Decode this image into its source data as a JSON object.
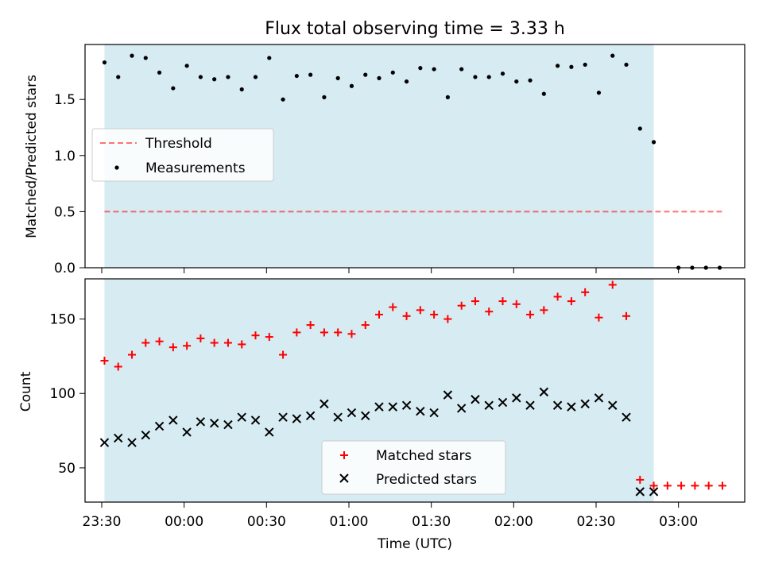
{
  "title": "Flux total observing time = 3.33 h",
  "colors": {
    "shade": "#add8e6",
    "threshold": "#ff0000",
    "measurements": "#000000",
    "matched": "#ff0000",
    "predicted": "#000000"
  },
  "chart_data": [
    {
      "type": "scatter",
      "panel": "top",
      "ylabel": "Matched/Predicted stars",
      "ylim": [
        0,
        1.99
      ],
      "yticks": [
        "0.0",
        "0.5",
        "1.0",
        "1.5"
      ],
      "grid": false,
      "legend": "center-left",
      "shaded_span": [
        "23:31",
        "02:51"
      ],
      "threshold": {
        "label": "Threshold",
        "value": 0.5,
        "x": [
          "23:31",
          "03:16"
        ],
        "style": "dashed"
      },
      "series": [
        {
          "name": "Measurements",
          "marker": "dot",
          "x": [
            "23:31",
            "23:36",
            "23:41",
            "23:46",
            "23:51",
            "23:56",
            "00:01",
            "00:06",
            "00:11",
            "00:16",
            "00:21",
            "00:26",
            "00:31",
            "00:36",
            "00:41",
            "00:46",
            "00:51",
            "00:56",
            "01:01",
            "01:06",
            "01:11",
            "01:16",
            "01:21",
            "01:26",
            "01:31",
            "01:36",
            "01:41",
            "01:46",
            "01:51",
            "01:56",
            "02:01",
            "02:06",
            "02:11",
            "02:16",
            "02:21",
            "02:26",
            "02:31",
            "02:36",
            "02:41",
            "02:46",
            "02:51",
            "03:00",
            "03:05",
            "03:10",
            "03:15"
          ],
          "values": [
            1.83,
            1.7,
            1.89,
            1.87,
            1.74,
            1.6,
            1.8,
            1.7,
            1.68,
            1.7,
            1.59,
            1.7,
            1.87,
            1.5,
            1.71,
            1.72,
            1.52,
            1.69,
            1.62,
            1.72,
            1.69,
            1.74,
            1.66,
            1.78,
            1.77,
            1.52,
            1.77,
            1.7,
            1.7,
            1.73,
            1.66,
            1.67,
            1.55,
            1.8,
            1.79,
            1.81,
            1.56,
            1.89,
            1.81,
            1.24,
            1.12,
            0.0,
            0.0,
            0.0,
            0.0
          ]
        }
      ]
    },
    {
      "type": "scatter",
      "panel": "bottom",
      "xlabel": "Time (UTC)",
      "ylabel": "Count",
      "ylim": [
        27,
        177
      ],
      "yticks": [
        "50",
        "100",
        "150"
      ],
      "xticks": [
        "23:30",
        "00:00",
        "00:30",
        "01:00",
        "01:30",
        "02:00",
        "02:30",
        "03:00"
      ],
      "grid": false,
      "legend": "lower-center",
      "shaded_span": [
        "23:31",
        "02:51"
      ],
      "series": [
        {
          "name": "Matched stars",
          "marker": "plus",
          "x": [
            "23:31",
            "23:36",
            "23:41",
            "23:46",
            "23:51",
            "23:56",
            "00:01",
            "00:06",
            "00:11",
            "00:16",
            "00:21",
            "00:26",
            "00:31",
            "00:36",
            "00:41",
            "00:46",
            "00:51",
            "00:56",
            "01:01",
            "01:06",
            "01:11",
            "01:16",
            "01:21",
            "01:26",
            "01:31",
            "01:36",
            "01:41",
            "01:46",
            "01:51",
            "01:56",
            "02:01",
            "02:06",
            "02:11",
            "02:16",
            "02:21",
            "02:26",
            "02:31",
            "02:36",
            "02:41",
            "02:46",
            "02:51",
            "02:56",
            "03:01",
            "03:06",
            "03:11",
            "03:16"
          ],
          "values": [
            122,
            118,
            126,
            134,
            135,
            131,
            132,
            137,
            134,
            134,
            133,
            139,
            138,
            126,
            141,
            146,
            141,
            141,
            140,
            146,
            153,
            158,
            152,
            156,
            153,
            150,
            159,
            162,
            155,
            162,
            160,
            153,
            156,
            165,
            162,
            168,
            151,
            173,
            152,
            42,
            38,
            38,
            38,
            38,
            38,
            38
          ]
        },
        {
          "name": "Predicted stars",
          "marker": "x",
          "x": [
            "23:31",
            "23:36",
            "23:41",
            "23:46",
            "23:51",
            "23:56",
            "00:01",
            "00:06",
            "00:11",
            "00:16",
            "00:21",
            "00:26",
            "00:31",
            "00:36",
            "00:41",
            "00:46",
            "00:51",
            "00:56",
            "01:01",
            "01:06",
            "01:11",
            "01:16",
            "01:21",
            "01:26",
            "01:31",
            "01:36",
            "01:41",
            "01:46",
            "01:51",
            "01:56",
            "02:01",
            "02:06",
            "02:11",
            "02:16",
            "02:21",
            "02:26",
            "02:31",
            "02:36",
            "02:41",
            "02:46",
            "02:51"
          ],
          "values": [
            67,
            70,
            67,
            72,
            78,
            82,
            74,
            81,
            80,
            79,
            84,
            82,
            74,
            84,
            83,
            85,
            93,
            84,
            87,
            85,
            91,
            91,
            92,
            88,
            87,
            99,
            90,
            96,
            92,
            94,
            97,
            92,
            101,
            92,
            91,
            93,
            97,
            92,
            84,
            34,
            34
          ]
        }
      ]
    }
  ]
}
